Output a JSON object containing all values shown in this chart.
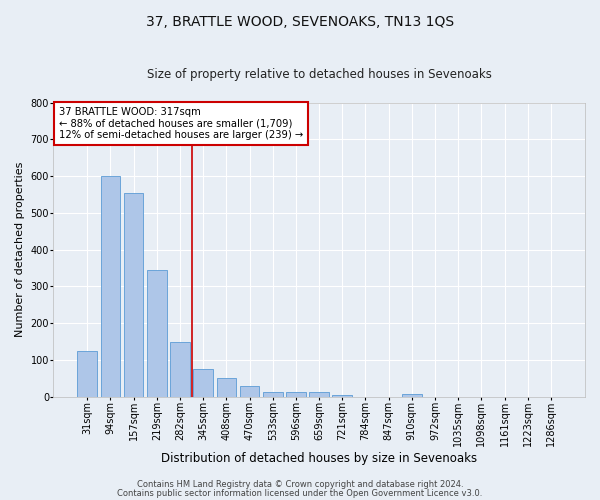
{
  "title": "37, BRATTLE WOOD, SEVENOAKS, TN13 1QS",
  "subtitle": "Size of property relative to detached houses in Sevenoaks",
  "xlabel": "Distribution of detached houses by size in Sevenoaks",
  "ylabel": "Number of detached properties",
  "categories": [
    "31sqm",
    "94sqm",
    "157sqm",
    "219sqm",
    "282sqm",
    "345sqm",
    "408sqm",
    "470sqm",
    "533sqm",
    "596sqm",
    "659sqm",
    "721sqm",
    "784sqm",
    "847sqm",
    "910sqm",
    "972sqm",
    "1035sqm",
    "1098sqm",
    "1161sqm",
    "1223sqm",
    "1286sqm"
  ],
  "values": [
    125,
    600,
    553,
    345,
    148,
    76,
    52,
    30,
    13,
    12,
    12,
    6,
    0,
    0,
    8,
    0,
    0,
    0,
    0,
    0,
    0
  ],
  "bar_color": "#aec6e8",
  "bar_edge_color": "#5b9bd5",
  "bg_color": "#e8eef5",
  "grid_color": "#ffffff",
  "vline_color": "#cc0000",
  "vline_x": 4.5,
  "annotation_text": "37 BRATTLE WOOD: 317sqm\n← 88% of detached houses are smaller (1,709)\n12% of semi-detached houses are larger (239) →",
  "annotation_box_color": "#ffffff",
  "annotation_box_edge": "#cc0000",
  "ylim": [
    0,
    800
  ],
  "yticks": [
    0,
    100,
    200,
    300,
    400,
    500,
    600,
    700,
    800
  ],
  "title_fontsize": 10,
  "subtitle_fontsize": 8.5,
  "ylabel_fontsize": 8,
  "xlabel_fontsize": 8.5,
  "tick_fontsize": 7,
  "footer1": "Contains HM Land Registry data © Crown copyright and database right 2024.",
  "footer2": "Contains public sector information licensed under the Open Government Licence v3.0.",
  "footer_fontsize": 6
}
